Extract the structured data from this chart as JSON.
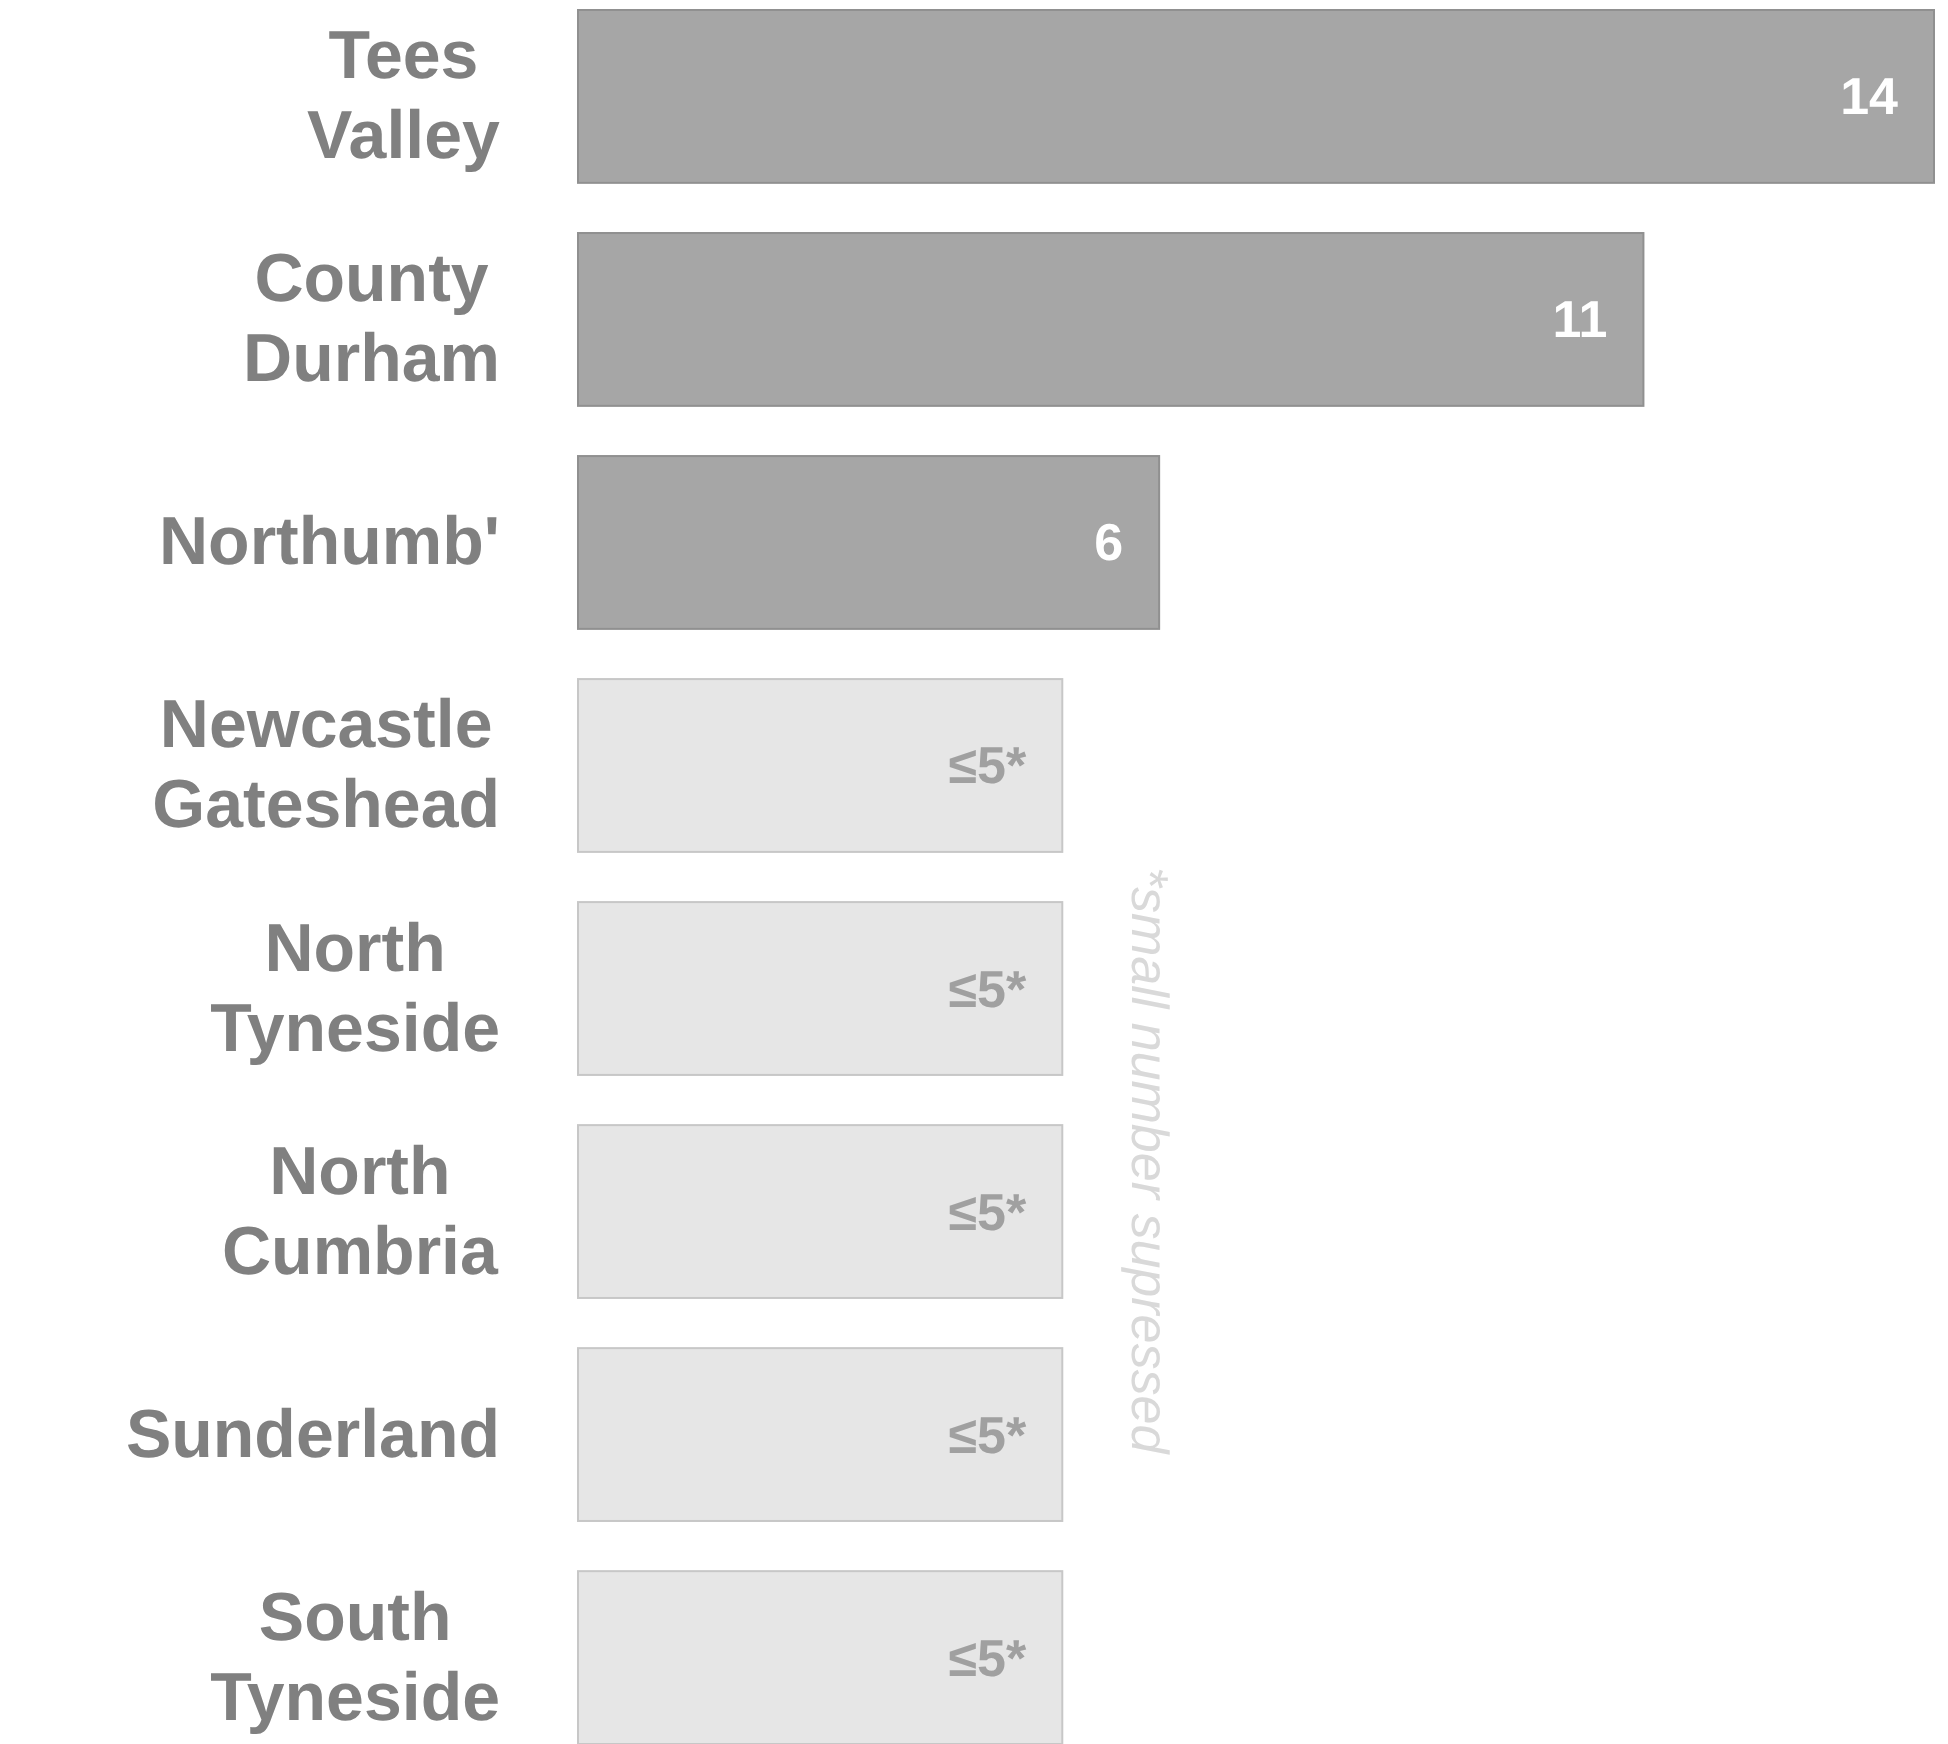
{
  "chart_data": {
    "type": "bar",
    "orientation": "horizontal",
    "categories": [
      "Tees Valley",
      "County Durham",
      "Northumb'",
      "Newcastle Gateshead",
      "North Tyneside",
      "North Cumbria",
      "Sunderland",
      "South Tyneside"
    ],
    "values": [
      14,
      11,
      6,
      5,
      5,
      5,
      5,
      5
    ],
    "colors": [
      "#a6a6a6",
      "#a6a6a6",
      "#a6a6a6",
      "#e6e6e6",
      "#e6e6e6",
      "#e6e6e6",
      "#e6e6e6",
      "#e6e6e6"
    ],
    "value_labels": [
      "14",
      "11",
      "6",
      "≤5*",
      "≤5*",
      "≤5*",
      "≤5*",
      "≤5*"
    ],
    "xlim": [
      0,
      14
    ],
    "annotations": [
      "*small number supressed"
    ]
  }
}
